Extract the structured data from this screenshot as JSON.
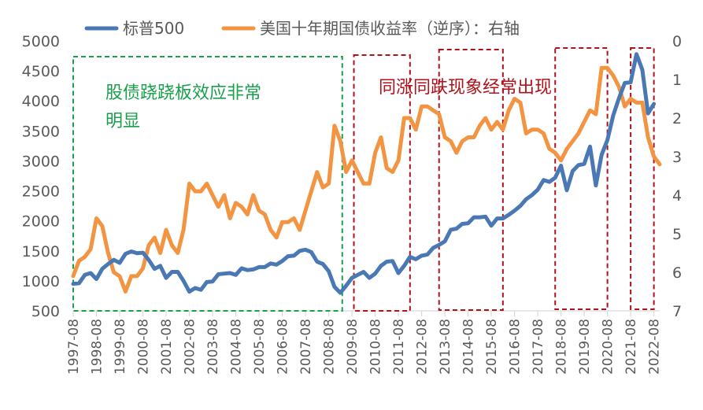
{
  "chart_data": {
    "type": "line",
    "title": "",
    "legend": {
      "placement": "top",
      "entries": [
        {
          "name": "标普500",
          "color": "#4A78B5"
        },
        {
          "name": "美国十年期国债收益率（逆序）：右轴",
          "color": "#F29441"
        }
      ]
    },
    "x_labels": [
      "1997-08",
      "1998-08",
      "1999-08",
      "2000-08",
      "2001-08",
      "2002-08",
      "2003-08",
      "2004-08",
      "2005-08",
      "2006-08",
      "2007-08",
      "2008-08",
      "2009-08",
      "2010-08",
      "2011-08",
      "2012-08",
      "2013-08",
      "2014-08",
      "2015-08",
      "2016-08",
      "2017-08",
      "2018-08",
      "2019-08",
      "2020-08",
      "2021-08",
      "2022-08"
    ],
    "x_range": [
      1997.5,
      2022.75
    ],
    "y_left": {
      "label": "",
      "range": [
        500,
        5000
      ],
      "ticks": [
        "500",
        "1000",
        "1500",
        "2000",
        "2500",
        "3000",
        "3500",
        "4000",
        "4500",
        "5000"
      ]
    },
    "y_right": {
      "label": "",
      "range": [
        0,
        7
      ],
      "inverted": true,
      "ticks": [
        "0",
        "1",
        "2",
        "3",
        "4",
        "5",
        "6",
        "7"
      ]
    },
    "series": [
      {
        "name": "标普500",
        "axis": "left",
        "color": "#4A78B5",
        "points": [
          [
            1997.5,
            950
          ],
          [
            1997.75,
            960
          ],
          [
            1998.0,
            1100
          ],
          [
            1998.25,
            1130
          ],
          [
            1998.5,
            1030
          ],
          [
            1998.75,
            1200
          ],
          [
            1999.0,
            1280
          ],
          [
            1999.25,
            1350
          ],
          [
            1999.5,
            1300
          ],
          [
            1999.75,
            1450
          ],
          [
            2000.0,
            1490
          ],
          [
            2000.25,
            1460
          ],
          [
            2000.5,
            1470
          ],
          [
            2000.75,
            1350
          ],
          [
            2001.0,
            1200
          ],
          [
            2001.25,
            1250
          ],
          [
            2001.5,
            1050
          ],
          [
            2001.75,
            1150
          ],
          [
            2002.0,
            1150
          ],
          [
            2002.25,
            1000
          ],
          [
            2002.5,
            820
          ],
          [
            2002.75,
            880
          ],
          [
            2003.0,
            850
          ],
          [
            2003.25,
            980
          ],
          [
            2003.5,
            990
          ],
          [
            2003.75,
            1110
          ],
          [
            2004.0,
            1120
          ],
          [
            2004.25,
            1130
          ],
          [
            2004.5,
            1100
          ],
          [
            2004.75,
            1210
          ],
          [
            2005.0,
            1180
          ],
          [
            2005.25,
            1190
          ],
          [
            2005.5,
            1230
          ],
          [
            2005.75,
            1230
          ],
          [
            2006.0,
            1290
          ],
          [
            2006.25,
            1270
          ],
          [
            2006.5,
            1330
          ],
          [
            2006.75,
            1410
          ],
          [
            2007.0,
            1420
          ],
          [
            2007.25,
            1500
          ],
          [
            2007.5,
            1520
          ],
          [
            2007.75,
            1480
          ],
          [
            2008.0,
            1320
          ],
          [
            2008.25,
            1280
          ],
          [
            2008.5,
            1160
          ],
          [
            2008.75,
            900
          ],
          [
            2009.0,
            800
          ],
          [
            2009.25,
            920
          ],
          [
            2009.5,
            1050
          ],
          [
            2009.75,
            1100
          ],
          [
            2010.0,
            1150
          ],
          [
            2010.25,
            1050
          ],
          [
            2010.5,
            1120
          ],
          [
            2010.75,
            1250
          ],
          [
            2011.0,
            1320
          ],
          [
            2011.25,
            1330
          ],
          [
            2011.5,
            1130
          ],
          [
            2011.75,
            1250
          ],
          [
            2012.0,
            1400
          ],
          [
            2012.25,
            1360
          ],
          [
            2012.5,
            1420
          ],
          [
            2012.75,
            1440
          ],
          [
            2013.0,
            1550
          ],
          [
            2013.25,
            1600
          ],
          [
            2013.5,
            1660
          ],
          [
            2013.75,
            1850
          ],
          [
            2014.0,
            1870
          ],
          [
            2014.25,
            1950
          ],
          [
            2014.5,
            1960
          ],
          [
            2014.75,
            2060
          ],
          [
            2015.0,
            2060
          ],
          [
            2015.25,
            2070
          ],
          [
            2015.5,
            1920
          ],
          [
            2015.75,
            2040
          ],
          [
            2016.0,
            2040
          ],
          [
            2016.25,
            2100
          ],
          [
            2016.5,
            2170
          ],
          [
            2016.75,
            2250
          ],
          [
            2017.0,
            2360
          ],
          [
            2017.25,
            2430
          ],
          [
            2017.5,
            2520
          ],
          [
            2017.75,
            2680
          ],
          [
            2018.0,
            2650
          ],
          [
            2018.25,
            2720
          ],
          [
            2018.5,
            2920
          ],
          [
            2018.75,
            2510
          ],
          [
            2019.0,
            2830
          ],
          [
            2019.25,
            2930
          ],
          [
            2019.5,
            2950
          ],
          [
            2019.75,
            3240
          ],
          [
            2020.0,
            2590
          ],
          [
            2020.25,
            3100
          ],
          [
            2020.5,
            3350
          ],
          [
            2020.75,
            3760
          ],
          [
            2021.0,
            4050
          ],
          [
            2021.25,
            4300
          ],
          [
            2021.5,
            4310
          ],
          [
            2021.75,
            4780
          ],
          [
            2022.0,
            4520
          ],
          [
            2022.25,
            3790
          ],
          [
            2022.5,
            3950
          ]
        ]
      },
      {
        "name": "美国十年期国债收益率（逆序）：右轴",
        "axis": "right",
        "color": "#F29441",
        "points": [
          [
            1997.5,
            6.1
          ],
          [
            1997.75,
            5.7
          ],
          [
            1998.0,
            5.6
          ],
          [
            1998.25,
            5.4
          ],
          [
            1998.5,
            4.6
          ],
          [
            1998.75,
            4.8
          ],
          [
            1999.0,
            5.5
          ],
          [
            1999.25,
            6.0
          ],
          [
            1999.5,
            6.1
          ],
          [
            1999.75,
            6.5
          ],
          [
            2000.0,
            6.1
          ],
          [
            2000.25,
            6.1
          ],
          [
            2000.5,
            5.9
          ],
          [
            2000.75,
            5.3
          ],
          [
            2001.0,
            5.1
          ],
          [
            2001.25,
            5.5
          ],
          [
            2001.5,
            4.9
          ],
          [
            2001.75,
            5.3
          ],
          [
            2002.0,
            5.5
          ],
          [
            2002.25,
            4.9
          ],
          [
            2002.5,
            3.7
          ],
          [
            2002.75,
            3.9
          ],
          [
            2003.0,
            3.9
          ],
          [
            2003.25,
            3.7
          ],
          [
            2003.5,
            4.0
          ],
          [
            2003.75,
            4.3
          ],
          [
            2004.0,
            4.0
          ],
          [
            2004.25,
            4.6
          ],
          [
            2004.5,
            4.2
          ],
          [
            2004.75,
            4.3
          ],
          [
            2005.0,
            4.5
          ],
          [
            2005.25,
            4.0
          ],
          [
            2005.5,
            4.4
          ],
          [
            2005.75,
            4.5
          ],
          [
            2006.0,
            4.9
          ],
          [
            2006.25,
            5.1
          ],
          [
            2006.5,
            4.7
          ],
          [
            2006.75,
            4.7
          ],
          [
            2007.0,
            4.6
          ],
          [
            2007.25,
            4.9
          ],
          [
            2007.5,
            4.4
          ],
          [
            2007.75,
            3.9
          ],
          [
            2008.0,
            3.4
          ],
          [
            2008.25,
            3.8
          ],
          [
            2008.5,
            3.7
          ],
          [
            2008.75,
            2.2
          ],
          [
            2009.0,
            2.6
          ],
          [
            2009.25,
            3.4
          ],
          [
            2009.5,
            3.1
          ],
          [
            2009.75,
            3.4
          ],
          [
            2010.0,
            3.7
          ],
          [
            2010.25,
            3.7
          ],
          [
            2010.5,
            2.9
          ],
          [
            2010.75,
            2.5
          ],
          [
            2011.0,
            3.3
          ],
          [
            2011.25,
            3.4
          ],
          [
            2011.5,
            3.1
          ],
          [
            2011.75,
            2.0
          ],
          [
            2012.0,
            2.0
          ],
          [
            2012.25,
            2.3
          ],
          [
            2012.5,
            1.7
          ],
          [
            2012.75,
            1.7
          ],
          [
            2013.0,
            1.8
          ],
          [
            2013.25,
            1.9
          ],
          [
            2013.5,
            2.5
          ],
          [
            2013.75,
            2.6
          ],
          [
            2014.0,
            2.9
          ],
          [
            2014.25,
            2.6
          ],
          [
            2014.5,
            2.5
          ],
          [
            2014.75,
            2.5
          ],
          [
            2015.0,
            2.2
          ],
          [
            2015.25,
            2.0
          ],
          [
            2015.5,
            2.3
          ],
          [
            2015.75,
            2.1
          ],
          [
            2016.0,
            2.3
          ],
          [
            2016.25,
            1.8
          ],
          [
            2016.5,
            1.5
          ],
          [
            2016.75,
            1.6
          ],
          [
            2017.0,
            2.4
          ],
          [
            2017.25,
            2.3
          ],
          [
            2017.5,
            2.3
          ],
          [
            2017.75,
            2.4
          ],
          [
            2018.0,
            2.8
          ],
          [
            2018.25,
            2.9
          ],
          [
            2018.5,
            3.1
          ],
          [
            2018.75,
            2.8
          ],
          [
            2019.0,
            2.6
          ],
          [
            2019.25,
            2.4
          ],
          [
            2019.5,
            2.1
          ],
          [
            2019.75,
            1.8
          ],
          [
            2020.0,
            1.9
          ],
          [
            2020.25,
            0.7
          ],
          [
            2020.5,
            0.7
          ],
          [
            2020.75,
            0.9
          ],
          [
            2021.0,
            1.2
          ],
          [
            2021.25,
            1.7
          ],
          [
            2021.5,
            1.5
          ],
          [
            2021.75,
            1.6
          ],
          [
            2022.0,
            1.6
          ],
          [
            2022.25,
            2.5
          ],
          [
            2022.5,
            3.0
          ],
          [
            2022.75,
            3.2
          ]
        ]
      }
    ],
    "annotations": [
      {
        "text": "股债跷跷板效应非常明显",
        "lines": [
          "股债跷跷板效应非常",
          "明显"
        ],
        "color": "#18A04A",
        "box_style": "dashed-green",
        "x_span": [
          "1997-08",
          "2009-03"
        ]
      },
      {
        "text": "同涨同跌现象经常出现",
        "color": "#B0121B",
        "box_style": "dashed-red"
      },
      {
        "box_style": "dashed-red",
        "x_span": [
          "2009-09",
          "2012-02"
        ]
      },
      {
        "box_style": "dashed-red",
        "x_span": [
          "2013-05",
          "2016-02"
        ]
      },
      {
        "box_style": "dashed-red",
        "x_span": [
          "2018-05",
          "2020-08"
        ]
      },
      {
        "box_style": "dashed-red",
        "x_span": [
          "2021-08",
          "2022-08"
        ]
      }
    ],
    "grid": false
  }
}
